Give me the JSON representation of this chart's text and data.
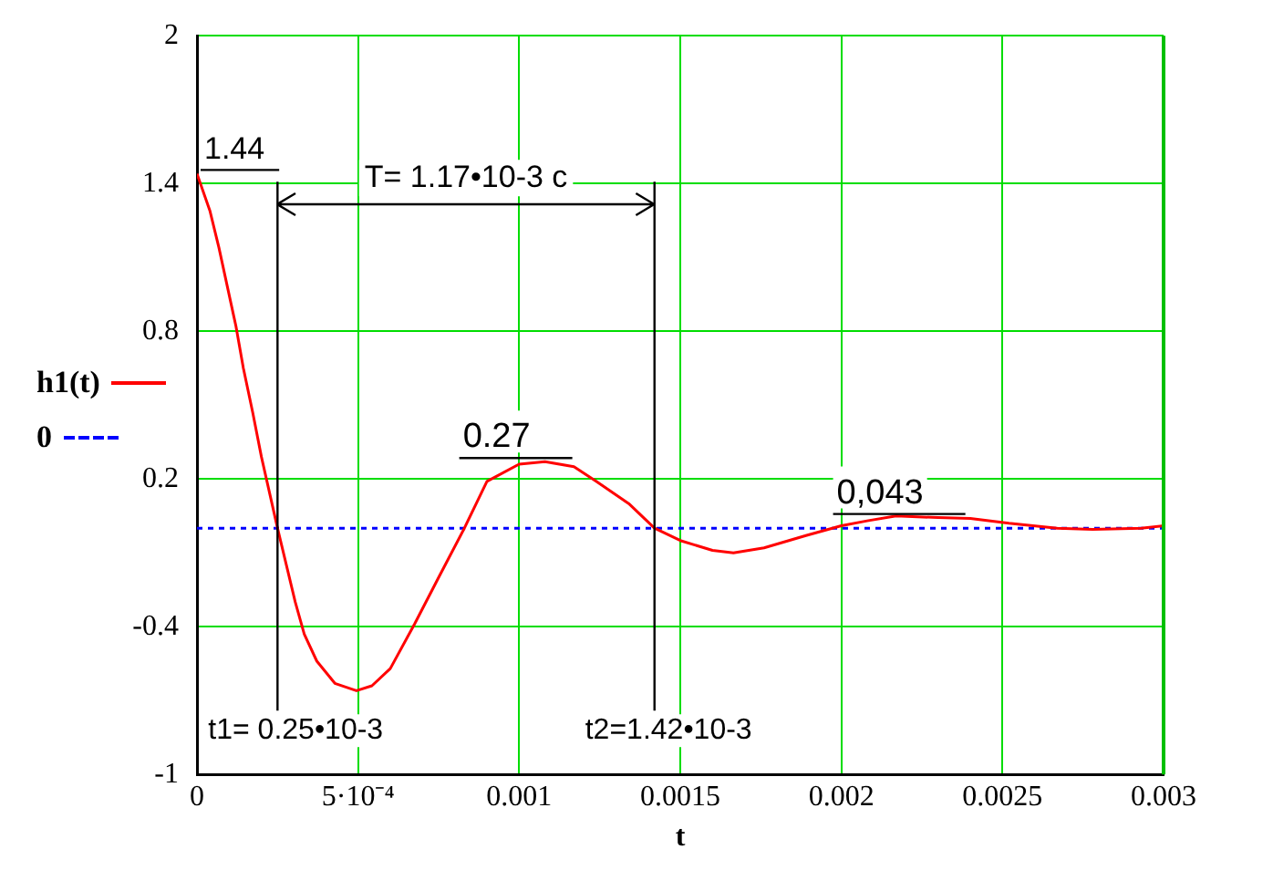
{
  "chart_data": {
    "type": "line",
    "xlabel": "t",
    "xlim": [
      0,
      0.003
    ],
    "xticks": [
      0,
      {
        "value": 0.0005,
        "label": "5·10⁻⁴"
      },
      0.001,
      0.0015,
      0.002,
      0.0025,
      0.003
    ],
    "ylim": [
      -1,
      2
    ],
    "yticks": [
      -1,
      -0.4,
      0.2,
      0.8,
      1.4,
      2
    ],
    "grid": true,
    "legend": "left",
    "marker": "none",
    "series": [
      {
        "name": "h1(t)",
        "color": "#ff0000",
        "line_style": "solid",
        "x": [
          0,
          4e-05,
          6.8e-05,
          0.000121,
          0.000144,
          0.000173,
          0.0002,
          0.00025,
          0.000305,
          0.000333,
          0.000372,
          0.000428,
          0.000495,
          0.000543,
          0.0006,
          0.000675,
          0.00075,
          0.00083,
          0.0009,
          0.001,
          0.00108,
          0.00117,
          0.00124,
          0.00134,
          0.00142,
          0.0015,
          0.0016,
          0.001665,
          0.00176,
          0.00189,
          0.002,
          0.00208,
          0.00217,
          0.0023,
          0.0024,
          0.00252,
          0.00267,
          0.00278,
          0.00293,
          0.003
        ],
        "values": [
          1.44,
          1.29,
          1.14,
          0.82,
          0.65,
          0.47,
          0.29,
          0,
          -0.3,
          -0.43,
          -0.54,
          -0.63,
          -0.66,
          -0.64,
          -0.57,
          -0.39,
          -0.2,
          0,
          0.19,
          0.26,
          0.27,
          0.25,
          0.19,
          0.1,
          0,
          -0.05,
          -0.09,
          -0.1,
          -0.08,
          -0.03,
          0.01,
          0.03,
          0.05,
          0.043,
          0.04,
          0.02,
          0,
          -0.005,
          0,
          0.01
        ]
      },
      {
        "name": "0",
        "color": "#0000ff",
        "line_style": "dotted",
        "x": [
          0,
          0.003
        ],
        "values": [
          0,
          0
        ]
      }
    ],
    "ref_lines": [
      {
        "axis": "x",
        "value": 0.00025,
        "label": "t1= 0.25•10-3",
        "color": "#000000"
      },
      {
        "axis": "x",
        "value": 0.00142,
        "label": "t2=1.42•10-3",
        "color": "#000000"
      },
      {
        "axis": "x",
        "value": 0.003,
        "label": null,
        "color": "#00c000"
      }
    ],
    "annotations": [
      {
        "text": "1.44",
        "x": 0,
        "y": 1.44
      },
      {
        "text": "0.27",
        "x": 0.00108,
        "y": 0.27
      },
      {
        "text": "0,043",
        "x": 0.0023,
        "y": 0.043
      },
      "T= 1.17•10-3 c"
    ]
  }
}
